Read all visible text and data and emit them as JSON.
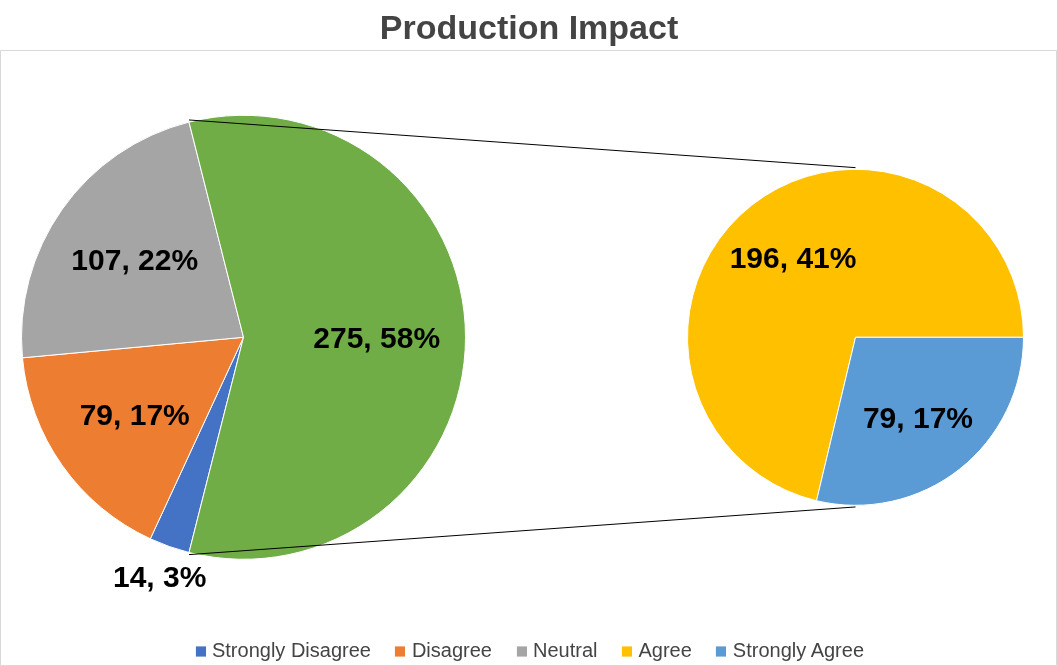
{
  "chart_data": [
    {
      "type": "pie",
      "title": "Production Impact",
      "categories": [
        "Strongly Disagree",
        "Disagree",
        "Neutral",
        null
      ],
      "values": [
        14,
        79,
        107,
        275
      ],
      "colors": [
        "#4472c4",
        "#ed7d31",
        "#a5a5a5",
        "#70ad47"
      ],
      "value_labels": [
        "14, 3%",
        "79, 17%",
        "107, 22%",
        "275, 58%"
      ],
      "legend": "bottom"
    },
    {
      "type": "pie",
      "categories": [
        "Agree",
        "Strongly Agree"
      ],
      "values": [
        196,
        79
      ],
      "colors": [
        "#ffc000",
        "#5b9bd5"
      ],
      "value_labels": [
        "196, 41%",
        "79, 17%"
      ],
      "legend": "bottom"
    }
  ]
}
